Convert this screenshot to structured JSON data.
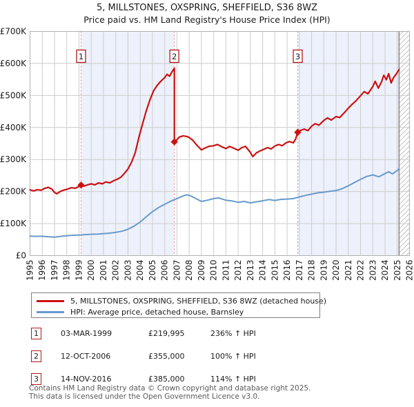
{
  "chart_data": {
    "type": "line",
    "title": "5, MILLSTONES, OXSPRING, SHEFFIELD, S36 8WZ",
    "subtitle": "Price paid vs. HM Land Registry's House Price Index (HPI)",
    "x_range": [
      1995,
      2026
    ],
    "y_range": [
      0,
      700000
    ],
    "x_ticks": [
      1995,
      1996,
      1997,
      1998,
      1999,
      2000,
      2001,
      2002,
      2003,
      2004,
      2005,
      2006,
      2007,
      2008,
      2009,
      2010,
      2011,
      2012,
      2013,
      2014,
      2015,
      2016,
      2017,
      2018,
      2019,
      2020,
      2021,
      2022,
      2023,
      2024,
      2025,
      2026
    ],
    "y_ticks": [
      0,
      100000,
      200000,
      300000,
      400000,
      500000,
      600000,
      700000
    ],
    "y_tick_labels": [
      "£0",
      "£100K",
      "£200K",
      "£300K",
      "£400K",
      "£500K",
      "£600K",
      "£700K"
    ],
    "grid": true,
    "legend_position": "bottom",
    "future_start": 2025.15,
    "shaded_regions": [
      [
        1999.17,
        2006.79
      ],
      [
        2016.87,
        2025.15
      ]
    ],
    "colors": {
      "price_line": "#cc1010",
      "hpi_line": "#6699cc",
      "shade": "#edf1fb",
      "marker_dash": "#f28f8f",
      "grid": "#cccccc",
      "plot_border": "#b0b0b0",
      "now_line": "#8c8c8c",
      "hatch_line": "#c0c0c0",
      "badge_border": "#b01818",
      "footer_text": "#595959"
    },
    "series": [
      {
        "name": "5, MILLSTONES, OXSPRING, SHEFFIELD, S36 8WZ (detached house)",
        "color": "#cc1010",
        "points": [
          [
            1995.0,
            205000
          ],
          [
            1995.3,
            202000
          ],
          [
            1995.6,
            206000
          ],
          [
            1995.9,
            204000
          ],
          [
            1996.2,
            210000
          ],
          [
            1996.5,
            213000
          ],
          [
            1996.8,
            207000
          ],
          [
            1997.0,
            197000
          ],
          [
            1997.2,
            193000
          ],
          [
            1997.5,
            201000
          ],
          [
            1997.8,
            205000
          ],
          [
            1998.1,
            208000
          ],
          [
            1998.4,
            212000
          ],
          [
            1998.7,
            210000
          ],
          [
            1999.0,
            216000
          ],
          [
            1999.17,
            219995
          ],
          [
            1999.4,
            217000
          ],
          [
            1999.7,
            221000
          ],
          [
            2000.0,
            224000
          ],
          [
            2000.3,
            221000
          ],
          [
            2000.6,
            227000
          ],
          [
            2000.9,
            224000
          ],
          [
            2001.2,
            230000
          ],
          [
            2001.5,
            227000
          ],
          [
            2001.8,
            233000
          ],
          [
            2002.1,
            238000
          ],
          [
            2002.4,
            244000
          ],
          [
            2002.7,
            256000
          ],
          [
            2003.0,
            270000
          ],
          [
            2003.3,
            292000
          ],
          [
            2003.6,
            322000
          ],
          [
            2003.9,
            370000
          ],
          [
            2004.2,
            412000
          ],
          [
            2004.5,
            452000
          ],
          [
            2004.8,
            487000
          ],
          [
            2005.1,
            515000
          ],
          [
            2005.4,
            532000
          ],
          [
            2005.7,
            545000
          ],
          [
            2006.0,
            556000
          ],
          [
            2006.2,
            566000
          ],
          [
            2006.4,
            560000
          ],
          [
            2006.6,
            574000
          ],
          [
            2006.79,
            585000
          ],
          [
            2006.79,
            355000
          ],
          [
            2007.0,
            362000
          ],
          [
            2007.2,
            370000
          ],
          [
            2007.5,
            374000
          ],
          [
            2007.8,
            372000
          ],
          [
            2008.0,
            369000
          ],
          [
            2008.3,
            360000
          ],
          [
            2008.6,
            346000
          ],
          [
            2009.0,
            330000
          ],
          [
            2009.3,
            336000
          ],
          [
            2009.6,
            341000
          ],
          [
            2010.0,
            343000
          ],
          [
            2010.3,
            347000
          ],
          [
            2010.6,
            341000
          ],
          [
            2011.0,
            334000
          ],
          [
            2011.3,
            341000
          ],
          [
            2011.6,
            336000
          ],
          [
            2012.0,
            329000
          ],
          [
            2012.3,
            337000
          ],
          [
            2012.6,
            341000
          ],
          [
            2013.0,
            322000
          ],
          [
            2013.2,
            309000
          ],
          [
            2013.5,
            321000
          ],
          [
            2013.8,
            327000
          ],
          [
            2014.1,
            332000
          ],
          [
            2014.4,
            337000
          ],
          [
            2014.7,
            333000
          ],
          [
            2015.0,
            342000
          ],
          [
            2015.3,
            347000
          ],
          [
            2015.6,
            343000
          ],
          [
            2015.9,
            352000
          ],
          [
            2016.2,
            356000
          ],
          [
            2016.5,
            352000
          ],
          [
            2016.7,
            364000
          ],
          [
            2016.87,
            385000
          ],
          [
            2017.1,
            391000
          ],
          [
            2017.4,
            395000
          ],
          [
            2017.7,
            390000
          ],
          [
            2018.0,
            404000
          ],
          [
            2018.3,
            412000
          ],
          [
            2018.6,
            407000
          ],
          [
            2019.0,
            422000
          ],
          [
            2019.3,
            430000
          ],
          [
            2019.6,
            423000
          ],
          [
            2020.0,
            434000
          ],
          [
            2020.3,
            431000
          ],
          [
            2020.6,
            443000
          ],
          [
            2021.0,
            460000
          ],
          [
            2021.3,
            472000
          ],
          [
            2021.6,
            482000
          ],
          [
            2022.0,
            499000
          ],
          [
            2022.3,
            512000
          ],
          [
            2022.6,
            505000
          ],
          [
            2023.0,
            528000
          ],
          [
            2023.2,
            544000
          ],
          [
            2023.45,
            523000
          ],
          [
            2023.7,
            541000
          ],
          [
            2023.9,
            563000
          ],
          [
            2024.1,
            549000
          ],
          [
            2024.3,
            568000
          ],
          [
            2024.5,
            539000
          ],
          [
            2024.7,
            556000
          ],
          [
            2024.9,
            566000
          ],
          [
            2025.15,
            581000
          ]
        ]
      },
      {
        "name": "HPI: Average price, detached house, Barnsley",
        "color": "#6699cc",
        "points": [
          [
            1995.0,
            61000
          ],
          [
            1995.5,
            60000
          ],
          [
            1996.0,
            60500
          ],
          [
            1996.5,
            58500
          ],
          [
            1997.0,
            57500
          ],
          [
            1997.5,
            60000
          ],
          [
            1998.0,
            62000
          ],
          [
            1998.5,
            63500
          ],
          [
            1999.0,
            64000
          ],
          [
            1999.5,
            65500
          ],
          [
            2000.0,
            66500
          ],
          [
            2000.5,
            67000
          ],
          [
            2001.0,
            68500
          ],
          [
            2001.5,
            70000
          ],
          [
            2002.0,
            72500
          ],
          [
            2002.5,
            76000
          ],
          [
            2003.0,
            82000
          ],
          [
            2003.5,
            92000
          ],
          [
            2004.0,
            105000
          ],
          [
            2004.5,
            121000
          ],
          [
            2005.0,
            137000
          ],
          [
            2005.5,
            150000
          ],
          [
            2006.0,
            160000
          ],
          [
            2006.5,
            170000
          ],
          [
            2007.0,
            178000
          ],
          [
            2007.5,
            186000
          ],
          [
            2007.8,
            190000
          ],
          [
            2008.1,
            187000
          ],
          [
            2008.5,
            179000
          ],
          [
            2009.0,
            169000
          ],
          [
            2009.5,
            173000
          ],
          [
            2010.0,
            178000
          ],
          [
            2010.4,
            180000
          ],
          [
            2011.0,
            173000
          ],
          [
            2011.5,
            170500
          ],
          [
            2012.0,
            166500
          ],
          [
            2012.5,
            169000
          ],
          [
            2013.0,
            164500
          ],
          [
            2013.5,
            168000
          ],
          [
            2014.0,
            171000
          ],
          [
            2014.5,
            175000
          ],
          [
            2015.0,
            172000
          ],
          [
            2015.5,
            175500
          ],
          [
            2016.0,
            176500
          ],
          [
            2016.5,
            178000
          ],
          [
            2017.0,
            183000
          ],
          [
            2017.5,
            188000
          ],
          [
            2018.0,
            192000
          ],
          [
            2018.5,
            196000
          ],
          [
            2019.0,
            198000
          ],
          [
            2019.5,
            201000
          ],
          [
            2020.0,
            203000
          ],
          [
            2020.5,
            209000
          ],
          [
            2021.0,
            218000
          ],
          [
            2021.5,
            228000
          ],
          [
            2022.0,
            238000
          ],
          [
            2022.5,
            247000
          ],
          [
            2023.0,
            252000
          ],
          [
            2023.5,
            246000
          ],
          [
            2024.0,
            256000
          ],
          [
            2024.3,
            262000
          ],
          [
            2024.6,
            255000
          ],
          [
            2025.0,
            266000
          ],
          [
            2025.15,
            271000
          ]
        ]
      }
    ],
    "markers": [
      {
        "n": 1,
        "x": 1999.17,
        "y": 219995,
        "date": "03-MAR-1999",
        "price": "£219,995",
        "pct": "236% ↑ HPI"
      },
      {
        "n": 2,
        "x": 2006.79,
        "y": 355000,
        "date": "12-OCT-2006",
        "price": "£355,000",
        "pct": "100% ↑ HPI"
      },
      {
        "n": 3,
        "x": 2016.87,
        "y": 385000,
        "date": "14-NOV-2016",
        "price": "£385,000",
        "pct": "114% ↑ HPI"
      }
    ]
  },
  "footer": {
    "line1": "Contains HM Land Registry data © Crown copyright and database right 2025.",
    "line2": "This data is licensed under the Open Government Licence v3.0."
  }
}
